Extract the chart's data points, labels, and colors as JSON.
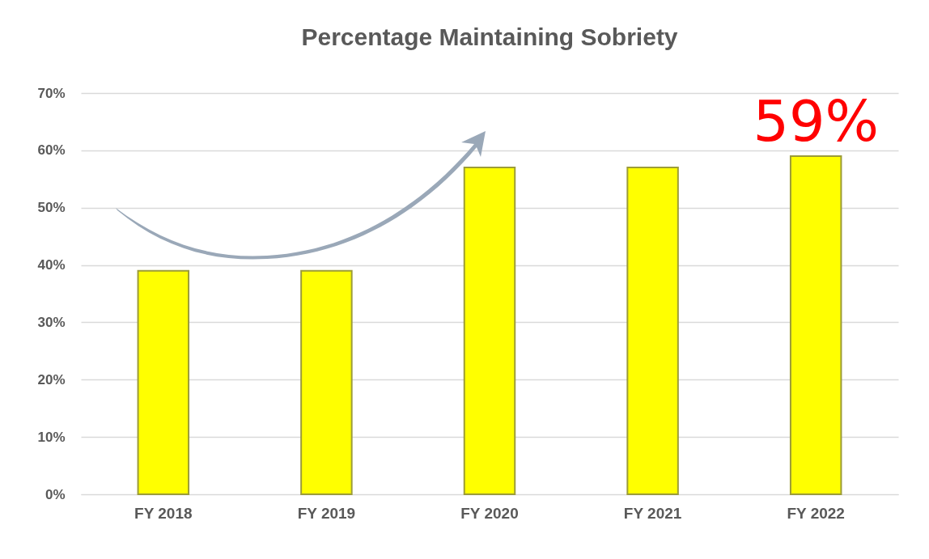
{
  "chart_data": {
    "type": "bar",
    "title": "Percentage Maintaining Sobriety",
    "categories": [
      "FY 2018",
      "FY 2019",
      "FY 2020",
      "FY 2021",
      "FY 2022"
    ],
    "values": [
      39,
      39,
      57,
      57,
      59
    ],
    "color": "#ffff00",
    "ylim": [
      0,
      70
    ],
    "yticks": [
      {
        "value": 0,
        "label": "0%"
      },
      {
        "value": 10,
        "label": "10%"
      },
      {
        "value": 20,
        "label": "20%"
      },
      {
        "value": 30,
        "label": "30%"
      },
      {
        "value": 40,
        "label": "40%"
      },
      {
        "value": 50,
        "label": "50%"
      },
      {
        "value": 60,
        "label": "60%"
      },
      {
        "value": 70,
        "label": "70%"
      }
    ],
    "grid": "y",
    "annotations": [
      {
        "text": "59%",
        "x": "FY 2022",
        "y": 59
      }
    ]
  }
}
